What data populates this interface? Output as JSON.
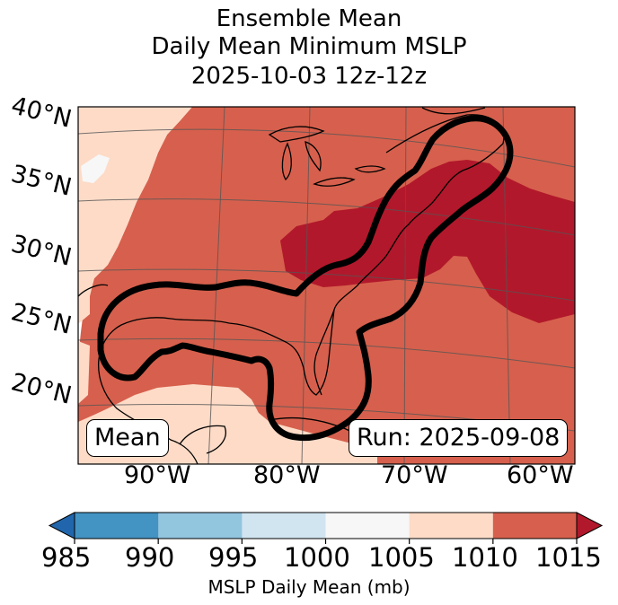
{
  "title": {
    "line1": "Ensemble Mean",
    "line2": "Daily Mean Minimum MSLP",
    "line3": "2025-10-03 12z-12z"
  },
  "latitude_labels": [
    "40°N",
    "35°N",
    "30°N",
    "25°N",
    "20°N"
  ],
  "longitude_labels": [
    "90°W",
    "80°W",
    "70°W",
    "60°W"
  ],
  "boxes": {
    "left": "Mean",
    "right": "Run: 2025-09-08"
  },
  "colorbar": {
    "label": "MSLP Daily Mean (mb)",
    "ticks": [
      "985",
      "990",
      "995",
      "1000",
      "1005",
      "1010",
      "1015"
    ],
    "colors": [
      "#4393c3",
      "#92c5de",
      "#d1e5f0",
      "#f7f7f7",
      "#fddbc7",
      "#d6604d"
    ],
    "extend_low": "#2166ac",
    "extend_high": "#b2182b"
  },
  "map_colors": {
    "ocean": "#d6604d",
    "low_pressure": "#b2182b",
    "high_pressure": "#fddbc7",
    "near_1000": "#f7f7f7"
  }
}
